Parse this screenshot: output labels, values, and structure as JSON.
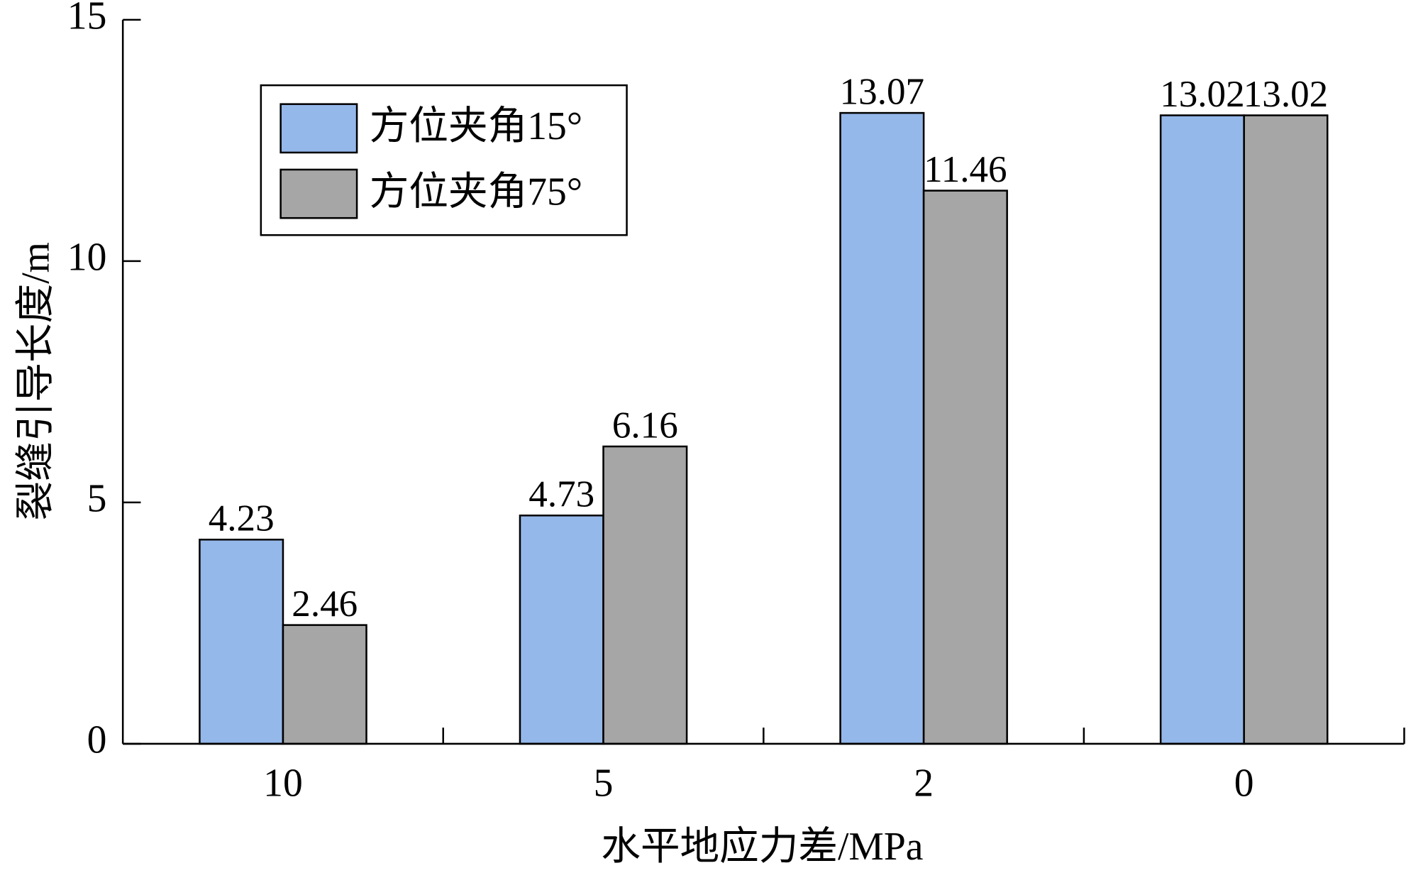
{
  "chart_data": {
    "type": "bar",
    "x_label": "水平地应力差/MPa",
    "y_label": "裂缝引导长度/m",
    "categories": [
      "10",
      "5",
      "2",
      "0"
    ],
    "series": [
      {
        "name": "方位夹角15°",
        "color": "#95b8ea",
        "values": [
          4.23,
          4.73,
          13.07,
          13.02
        ]
      },
      {
        "name": "方位夹角75°",
        "color": "#a6a6a6",
        "values": [
          2.46,
          6.16,
          11.46,
          13.02
        ]
      }
    ],
    "ylim": [
      0,
      15
    ],
    "yticks": [
      0,
      5,
      10,
      15
    ]
  }
}
